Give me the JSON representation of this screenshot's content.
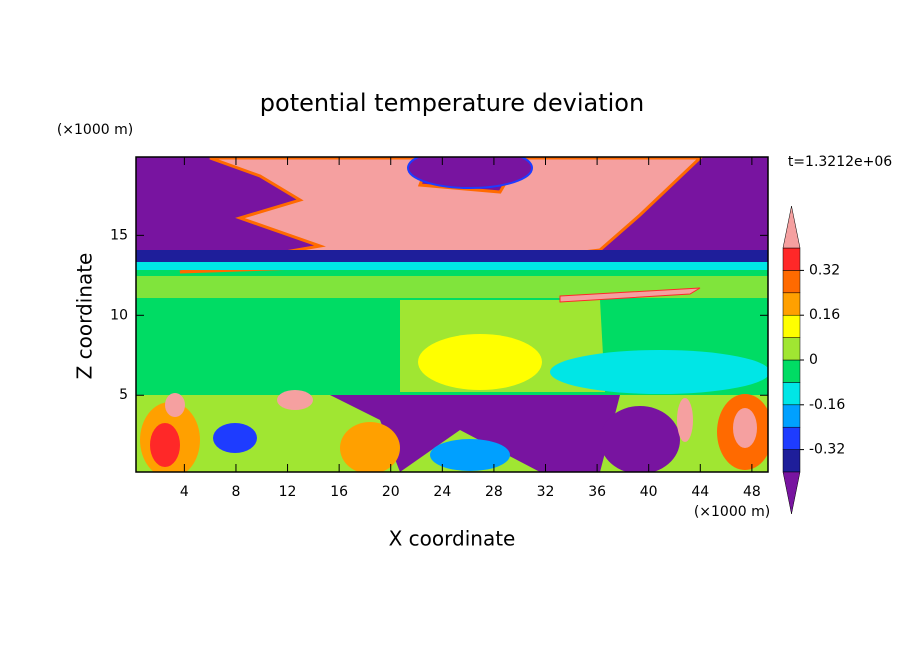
{
  "chart_data": {
    "type": "contour",
    "title": "potential temperature deviation",
    "x_label": "X coordinate",
    "y_label": "Z coordinate",
    "x_unit": "(×1000 m)",
    "y_unit": "(×1000 m)",
    "annotation": "t=1.3212e+06",
    "xlim": [
      0.25,
      49.25
    ],
    "ylim": [
      0.2,
      19.9
    ],
    "xticks": [
      4,
      8,
      12,
      16,
      20,
      24,
      28,
      32,
      36,
      40,
      44,
      48
    ],
    "yticks": [
      5,
      10,
      15
    ],
    "colorbar": {
      "levels": [
        -0.4,
        -0.32,
        -0.24,
        -0.16,
        -0.08,
        0,
        0.08,
        0.16,
        0.24,
        0.32,
        0.4
      ],
      "colors": [
        "#1e1e9a",
        "#1e3cff",
        "#00a0ff",
        "#00e6e6",
        "#00dc64",
        "#a0e632",
        "#ffff00",
        "#ffa000",
        "#ff6a00",
        "#ff2828"
      ],
      "over_color": "#f5a0a0",
      "under_color": "#7814a0",
      "ticks": [
        -0.32,
        -0.16,
        0,
        0.16,
        0.32
      ]
    }
  }
}
